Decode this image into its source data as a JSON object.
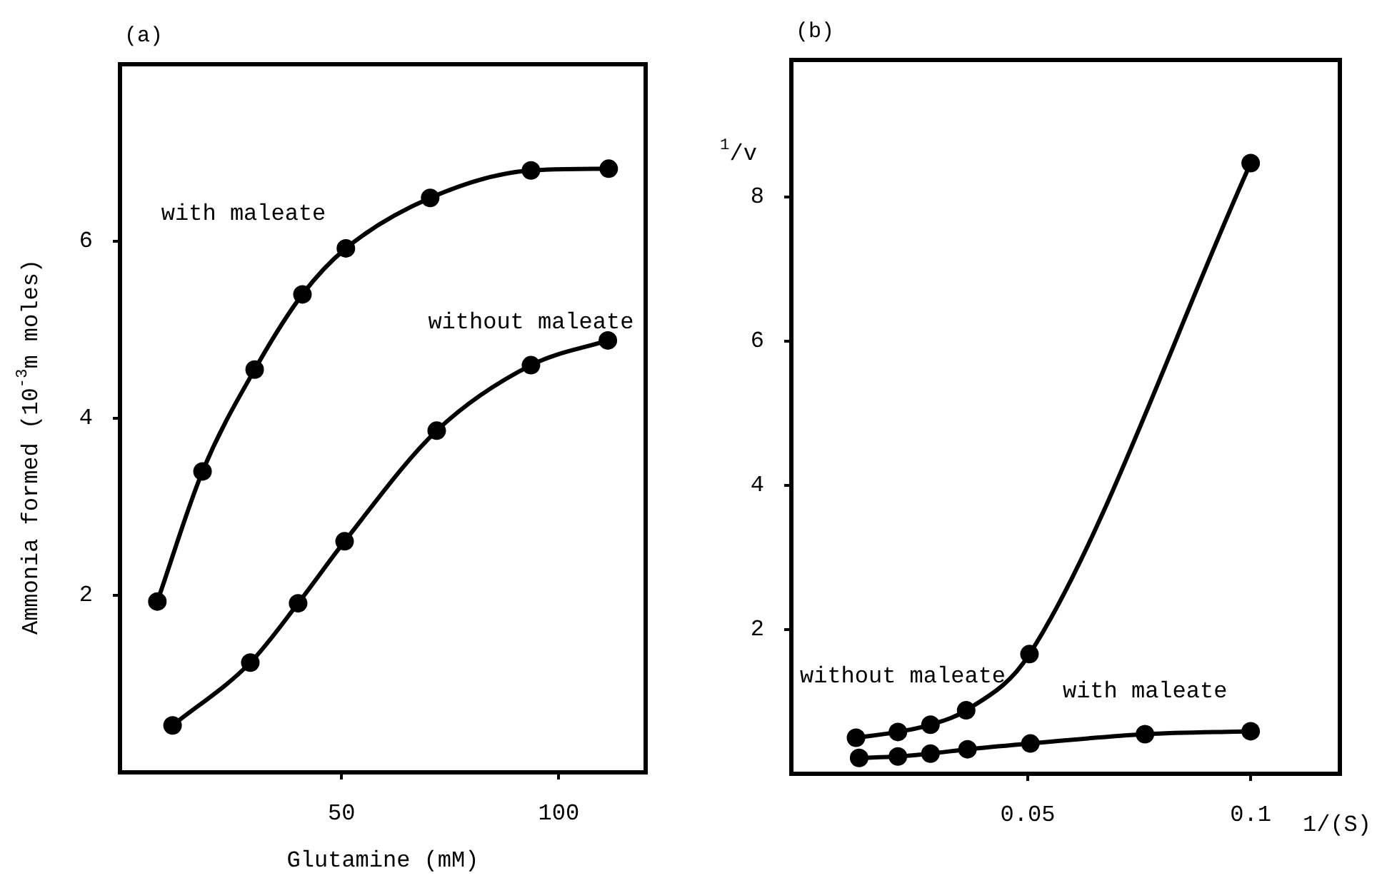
{
  "chart_data": [
    {
      "type": "line",
      "title": "(a)",
      "xlabel": "Glutamine (mM)",
      "ylabel": "Ammonia formed (10$^{-3}$m moles)",
      "xlim": [
        -1,
        120
      ],
      "ylim": [
        0,
        8
      ],
      "xticks": [
        50,
        100
      ],
      "yticks": [
        2,
        4,
        6
      ],
      "marker": "circle",
      "legend": false,
      "grid": false,
      "series": [
        {
          "name": "with maleate",
          "color": "#000000",
          "x": [
            7.6,
            18,
            30,
            41,
            51,
            70.4,
            93.6,
            111.5
          ],
          "values": [
            1.93,
            3.4,
            4.55,
            5.4,
            5.92,
            6.49,
            6.8,
            6.82
          ]
        },
        {
          "name": "without maleate",
          "color": "#000000",
          "x": [
            11.1,
            29,
            40,
            50.7,
            71.9,
            93.6,
            111.3
          ],
          "values": [
            0.53,
            1.24,
            1.91,
            2.61,
            3.86,
            4.6,
            4.88
          ]
        }
      ]
    },
    {
      "type": "line",
      "title": "(b)",
      "xlabel": "1/(S)",
      "ylabel": "$^{1}$/v",
      "xlim": [
        -0.003,
        0.12
      ],
      "ylim": [
        0,
        9.9
      ],
      "xticks": [
        0.05,
        0.1
      ],
      "yticks": [
        2,
        4,
        6,
        8
      ],
      "marker": "circle",
      "legend": false,
      "grid": false,
      "series": [
        {
          "name": "without maleate",
          "color": "#000000",
          "x": [
            0.0115,
            0.0209,
            0.0282,
            0.0362,
            0.0504,
            0.1
          ],
          "values": [
            0.5,
            0.58,
            0.68,
            0.88,
            1.66,
            8.47
          ]
        },
        {
          "name": "with maleate",
          "color": "#000000",
          "x": [
            0.0122,
            0.0209,
            0.0282,
            0.0365,
            0.0506,
            0.0763,
            0.1
          ],
          "values": [
            0.22,
            0.24,
            0.28,
            0.34,
            0.42,
            0.55,
            0.59
          ]
        }
      ]
    }
  ]
}
